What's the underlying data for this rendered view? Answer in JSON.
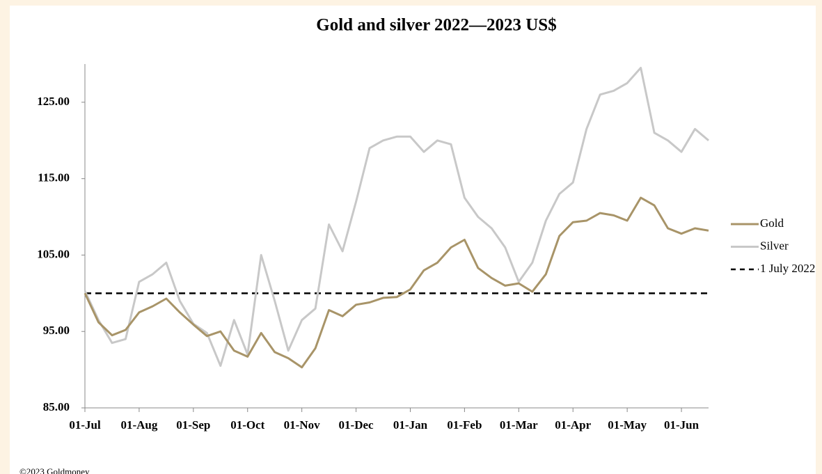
{
  "chart_data": {
    "type": "line",
    "title": "Gold and silver 2022—2023  US$",
    "footer": "©2023 Goldmoney",
    "categories": [
      "01-Jul",
      null,
      null,
      null,
      "01-Aug",
      null,
      null,
      null,
      "01-Sep",
      null,
      null,
      null,
      "01-Oct",
      null,
      null,
      null,
      "01-Nov",
      null,
      null,
      null,
      "01-Dec",
      null,
      null,
      null,
      "01-Jan",
      null,
      null,
      null,
      "01-Feb",
      null,
      null,
      null,
      "01-Mar",
      null,
      null,
      null,
      "01-Apr",
      null,
      null,
      null,
      "01-May",
      null,
      null,
      null,
      "01-Jun",
      null,
      null
    ],
    "series": [
      {
        "name": "Gold",
        "color": "#a89468",
        "values": [
          100,
          96.2,
          94.5,
          95.2,
          97.5,
          98.3,
          99.3,
          97.5,
          95.9,
          94.4,
          95.0,
          92.5,
          91.7,
          94.8,
          92.3,
          91.5,
          90.3,
          92.8,
          97.8,
          97.0,
          98.5,
          98.8,
          99.4,
          99.5,
          100.5,
          103.0,
          104.0,
          106.0,
          107.0,
          103.3,
          102.0,
          101.0,
          101.3,
          100.2,
          102.5,
          107.5,
          109.3,
          109.5,
          110.5,
          110.2,
          109.5,
          112.5,
          111.5,
          108.5,
          107.8,
          108.5,
          108.2
        ]
      },
      {
        "name": "Silver",
        "color": "#c8c8c8",
        "values": [
          100.3,
          96.5,
          93.5,
          94.0,
          101.5,
          102.5,
          104.0,
          99.0,
          96.0,
          94.8,
          90.5,
          96.5,
          92.0,
          105.0,
          99.0,
          92.5,
          96.5,
          98.0,
          109.0,
          105.5,
          112.0,
          119.0,
          120.0,
          120.5,
          120.5,
          118.5,
          120.0,
          119.5,
          112.5,
          110.0,
          108.5,
          106.0,
          101.5,
          104.0,
          109.5,
          113.0,
          114.5,
          121.5,
          126.0,
          126.5,
          127.5,
          129.5,
          121.0,
          120.0,
          118.5,
          121.5,
          120.0
        ]
      }
    ],
    "reference_line": {
      "name": "1 July 2022",
      "value": 100,
      "color": "#000000"
    },
    "ylim": [
      85,
      130
    ],
    "yticks": [
      {
        "value": 85,
        "label": "85.00"
      },
      {
        "value": 95,
        "label": "95.00"
      },
      {
        "value": 105,
        "label": "105.00"
      },
      {
        "value": 115,
        "label": "115.00"
      },
      {
        "value": 125,
        "label": "125.00"
      }
    ],
    "legend": "right"
  }
}
